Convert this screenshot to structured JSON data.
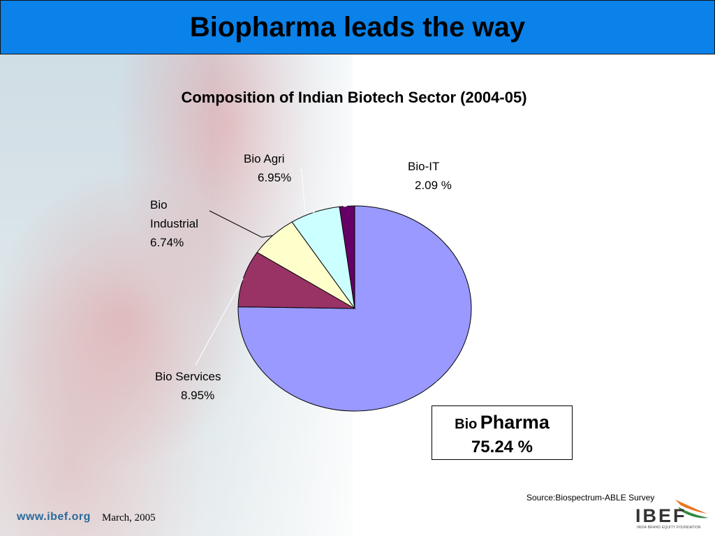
{
  "header": {
    "title": "Biopharma leads the way"
  },
  "chart_data": {
    "type": "pie",
    "title": "Composition of Indian Biotech Sector (2004-05)",
    "slices": [
      {
        "name": "Bio Pharma",
        "value": 75.24,
        "label_prefix": "Bio",
        "label_main": "Pharma",
        "value_text": "75.24 %",
        "color": "#9999ff"
      },
      {
        "name": "Bio Services",
        "value": 8.95,
        "label_lines": [
          "Bio Services"
        ],
        "value_text": "8.95%",
        "color": "#993366"
      },
      {
        "name": "Bio Industrial",
        "value": 6.74,
        "label_lines": [
          "Bio",
          "Industrial"
        ],
        "value_text": "6.74%",
        "color": "#ffffcc"
      },
      {
        "name": "Bio Agri",
        "value": 6.95,
        "label_lines": [
          "Bio Agri"
        ],
        "value_text": "6.95%",
        "color": "#ccffff"
      },
      {
        "name": "Bio-IT",
        "value": 2.09,
        "label_lines": [
          "Bio-IT"
        ],
        "value_text": "2.09 %",
        "color": "#660066"
      }
    ]
  },
  "footer": {
    "source": "Source:Biospectrum-ABLE Survey",
    "date": "March, 2005",
    "url": "www.ibef.org",
    "logo_text": "IBEF",
    "logo_subtext": "INDIA BRAND EQUITY FOUNDATION"
  }
}
